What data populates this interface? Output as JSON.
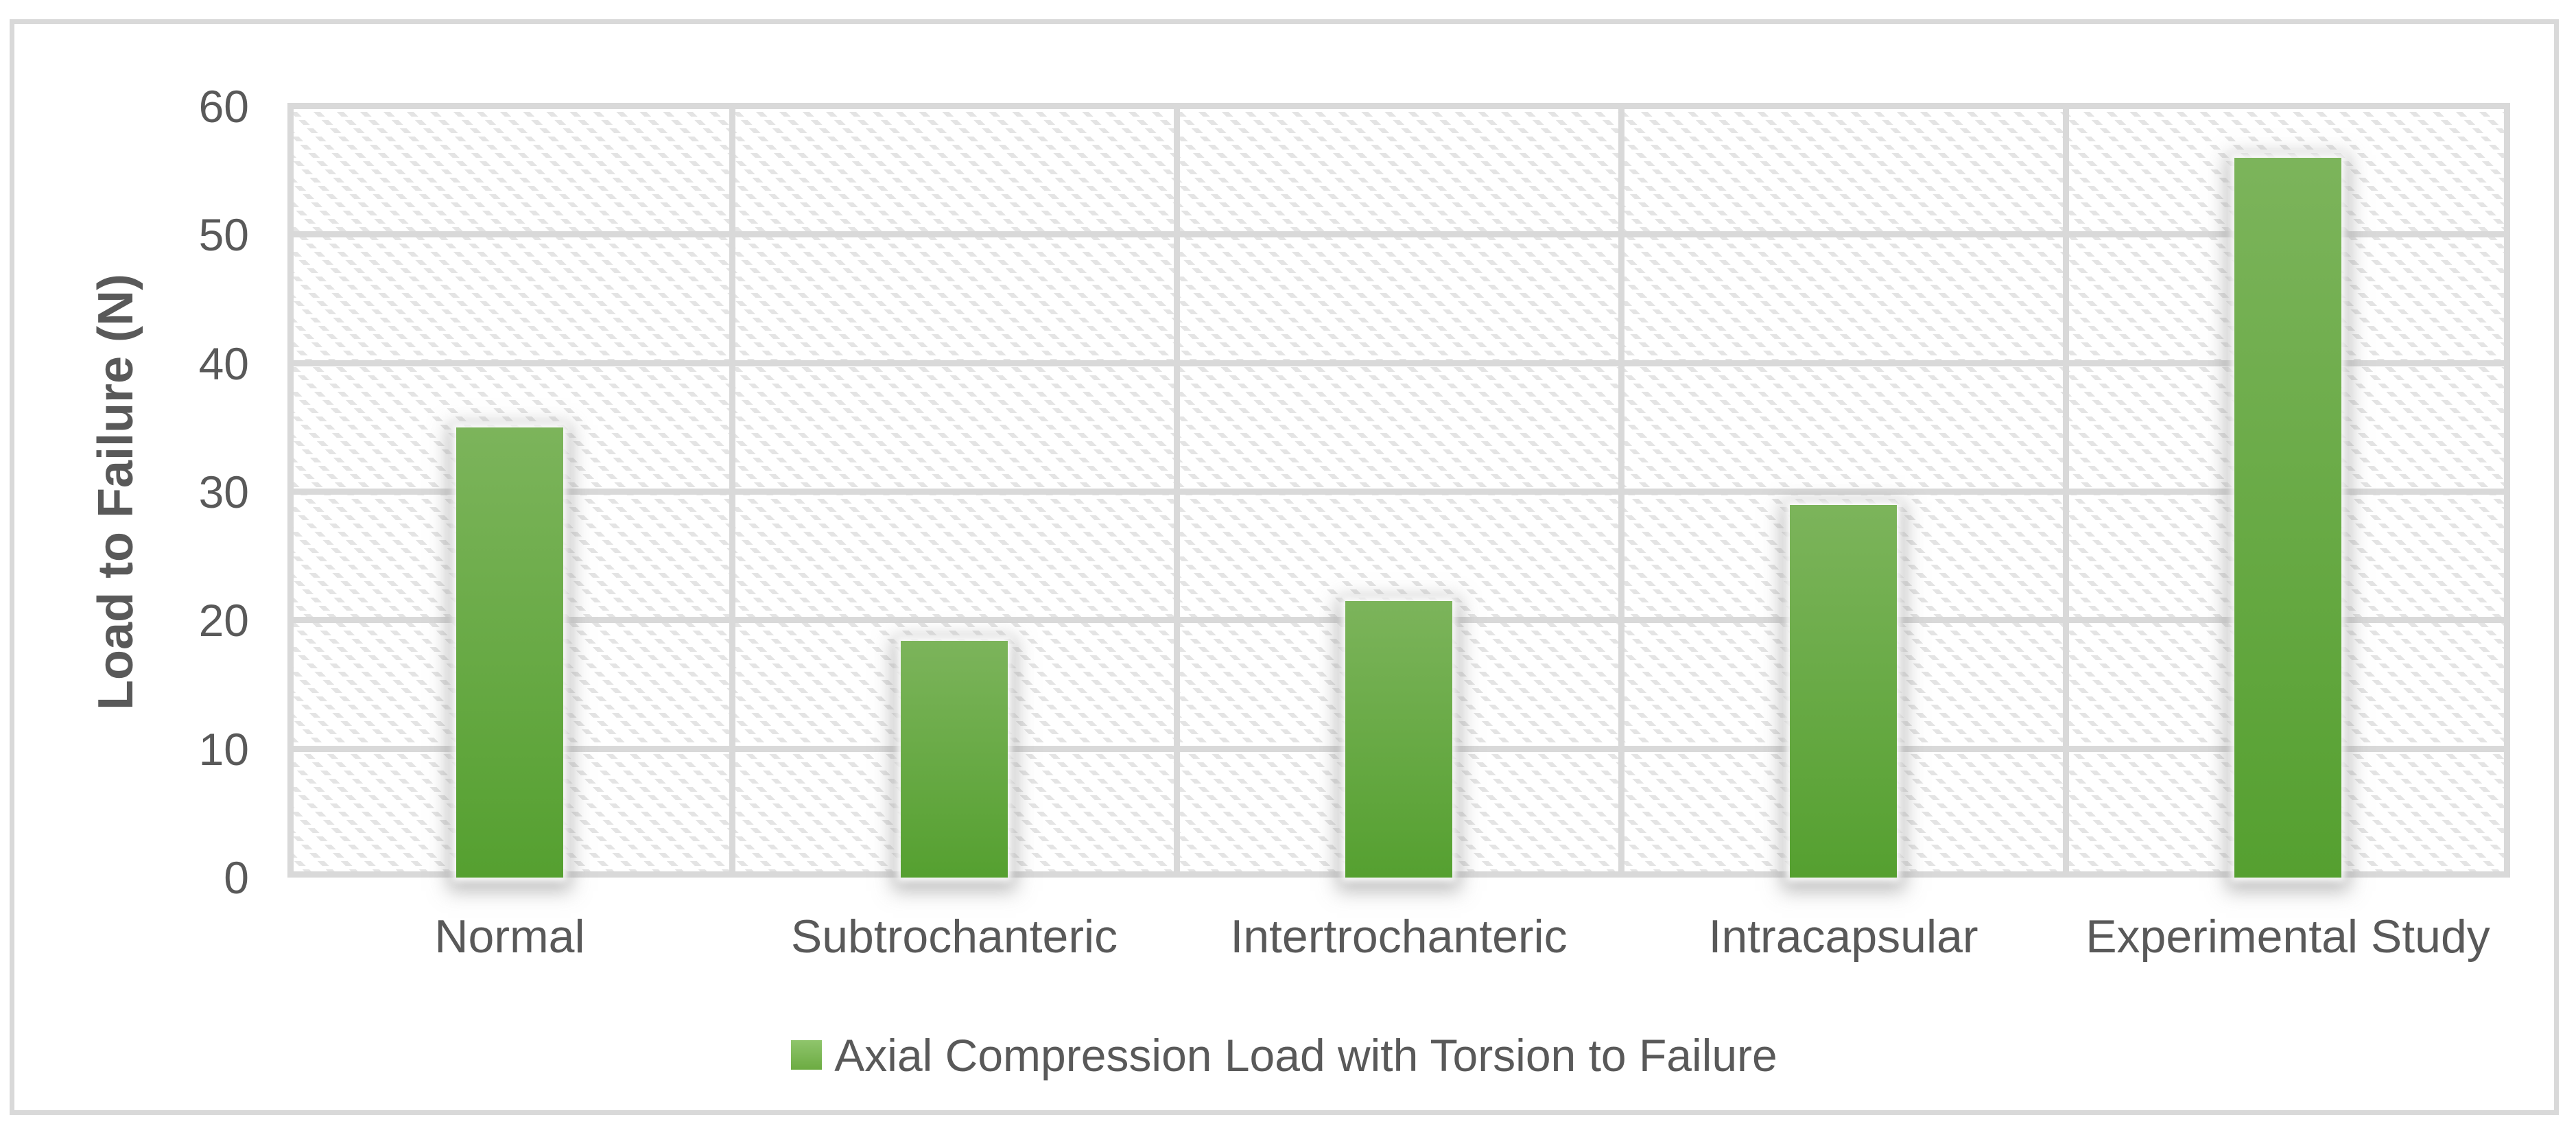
{
  "chart_data": {
    "type": "bar",
    "title": "",
    "ylabel": "Load to Failure (N)",
    "xlabel": "",
    "categories": [
      "Normal",
      "Subtrochanteric",
      "Intertrochanteric",
      "Intracapsular",
      "Experimental Study"
    ],
    "values": [
      35,
      18.4,
      21.5,
      29,
      56
    ],
    "series_name": "Axial Compression Load with Torsion to Failure",
    "legend": "Axial Compression Load with Torsion to Failure",
    "ylim": [
      0,
      60
    ],
    "yticks": [
      0,
      10,
      20,
      30,
      40,
      50,
      60
    ],
    "grid": {
      "horizontal": true,
      "vertical_category_boundaries": true
    },
    "legend_position": "bottom",
    "plot_background": "diagonal-hatch",
    "colors": {
      "bar_gradient_top": "#7cb45b",
      "bar_gradient_bottom": "#55a030",
      "legend_marker_top": "#8fc56c",
      "legend_marker_bottom": "#6cab42",
      "gridline": "#d9d9d9",
      "chart_border": "#d9d9d9",
      "hatch": "#e4e4e4",
      "text": "#595959"
    }
  }
}
